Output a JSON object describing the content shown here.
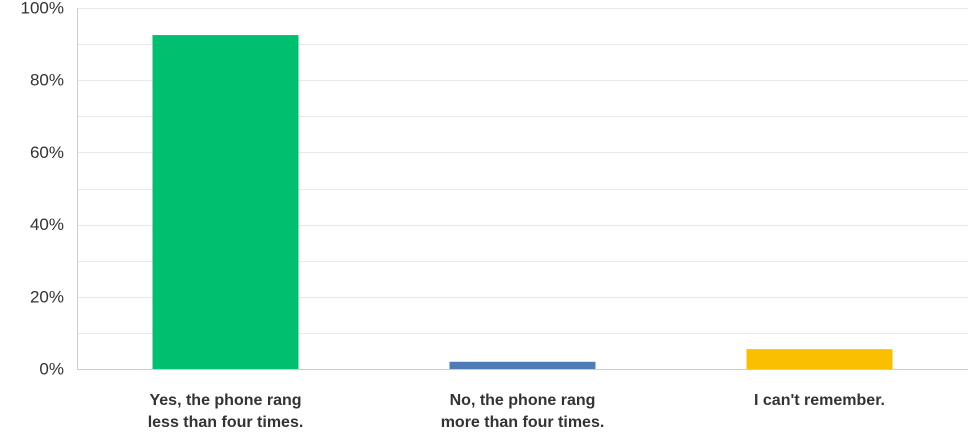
{
  "chart_data": {
    "type": "bar",
    "categories": [
      [
        "Yes, the phone rang",
        "less than four times."
      ],
      [
        "No, the phone rang",
        "more than four times."
      ],
      [
        "I can't remember."
      ]
    ],
    "values": [
      92.5,
      2.0,
      5.5
    ],
    "colors": [
      "#00bf6f",
      "#507cb6",
      "#f9be00"
    ],
    "ylim": [
      0,
      100
    ],
    "yticks": [
      "0%",
      "20%",
      "40%",
      "60%",
      "80%",
      "100%"
    ],
    "ytick_values": [
      0,
      20,
      40,
      60,
      80,
      100
    ],
    "minor_gridlines": true,
    "grid_color": "#e8e8e8",
    "axis_color": "#cccccc"
  }
}
